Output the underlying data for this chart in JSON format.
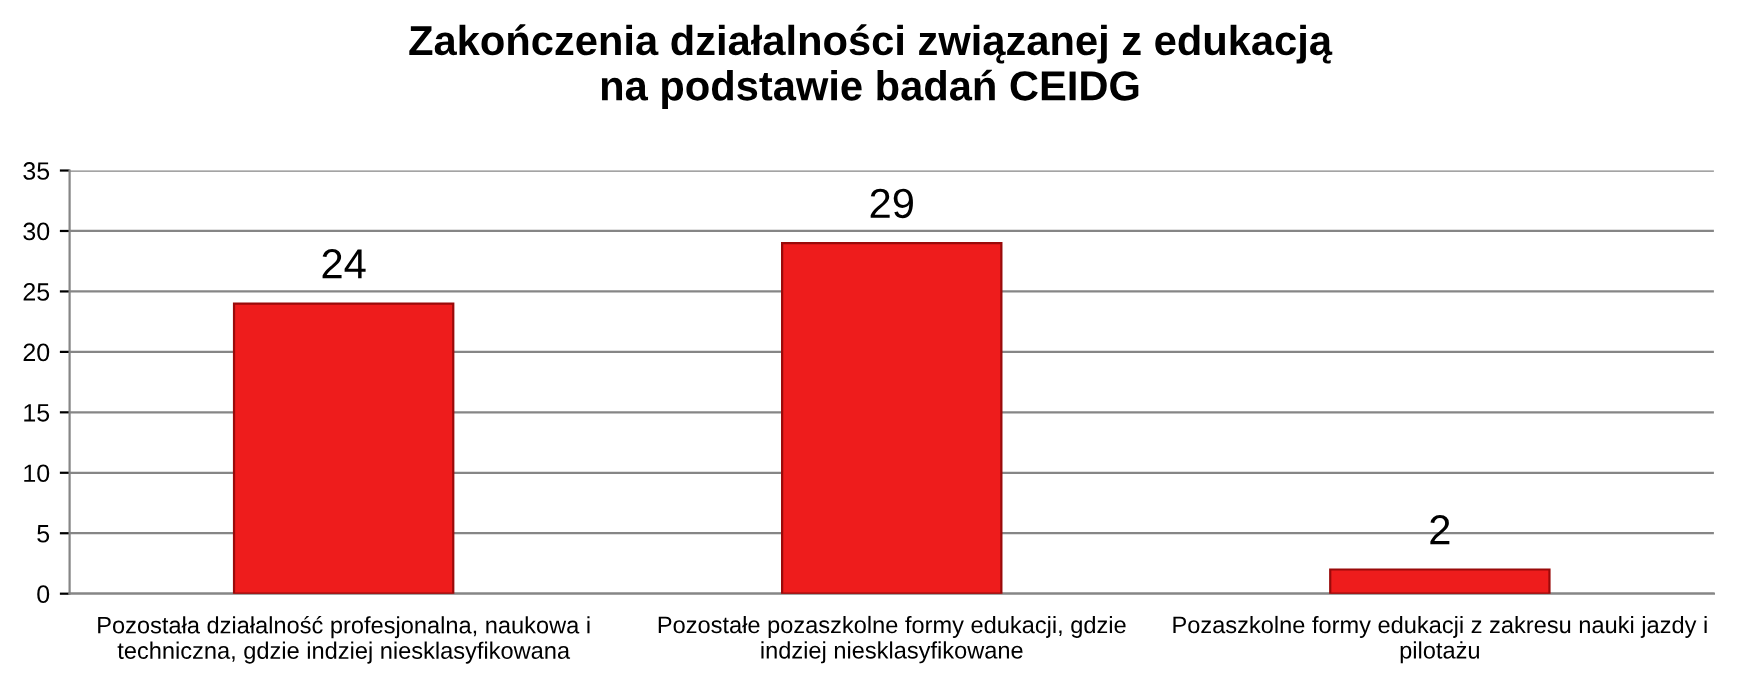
{
  "chart_data": {
    "type": "bar",
    "title": "Zakończenia działalności związanej z edukacją\nna podstawie badań CEIDG",
    "categories": [
      "Pozostała działalność profesjonalna, naukowa i\ntechniczna, gdzie indziej niesklasyfikowana",
      "Pozostałe pozaszkolne formy edukacji, gdzie\nindziej niesklasyfikowane",
      "Pozaszkolne formy edukacji z zakresu nauki jazdy i\npilotażu"
    ],
    "values": [
      24,
      29,
      2
    ],
    "color": "#ee1c1c",
    "ylim": [
      0,
      35
    ],
    "yticks": [
      0,
      5,
      10,
      15,
      20,
      25,
      30,
      35
    ],
    "grid": "y",
    "legend": false,
    "data_labels": true
  }
}
